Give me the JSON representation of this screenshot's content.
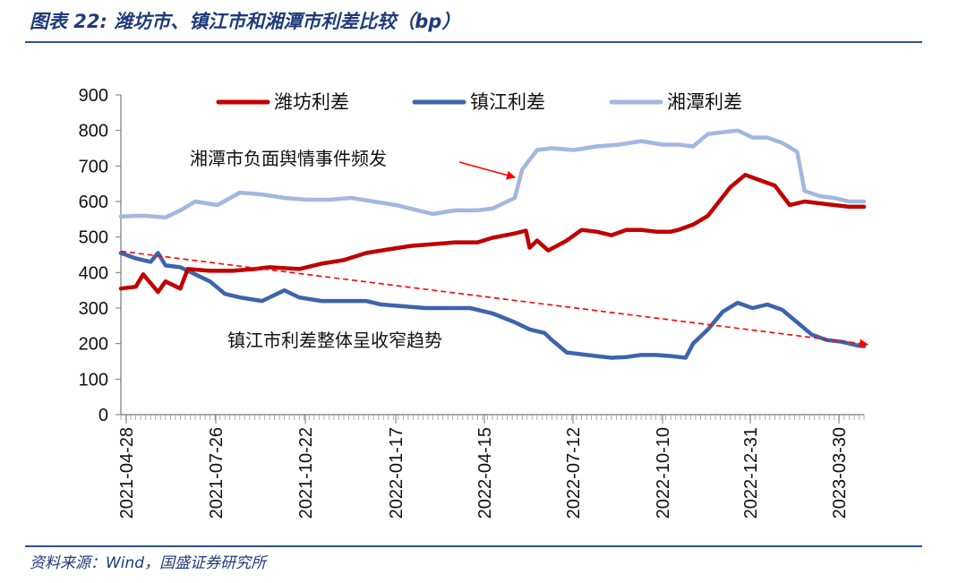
{
  "header": {
    "title": "图表 22:  潍坊市、镇江市和湘潭市利差比较（bp）"
  },
  "footer": {
    "source": "资料来源：Wind，国盛证券研究所"
  },
  "chart_data": {
    "type": "line",
    "y_ticks": [
      0,
      100,
      200,
      300,
      400,
      500,
      600,
      700,
      800,
      900
    ],
    "ylim": [
      0,
      900
    ],
    "x_tick_labels": [
      "2021-04-28",
      "2021-07-26",
      "2021-10-22",
      "2022-01-17",
      "2022-04-15",
      "2022-07-12",
      "2022-10-10",
      "2022-12-31",
      "2023-03-30"
    ],
    "legend": {
      "placement": "top"
    },
    "grid": false,
    "series": [
      {
        "name": "潍坊利差",
        "color": "#c00000",
        "points": [
          [
            0,
            355
          ],
          [
            0.02,
            360
          ],
          [
            0.03,
            395
          ],
          [
            0.05,
            345
          ],
          [
            0.06,
            375
          ],
          [
            0.08,
            355
          ],
          [
            0.09,
            410
          ],
          [
            0.12,
            405
          ],
          [
            0.15,
            405
          ],
          [
            0.18,
            410
          ],
          [
            0.2,
            415
          ],
          [
            0.24,
            410
          ],
          [
            0.27,
            425
          ],
          [
            0.3,
            435
          ],
          [
            0.33,
            455
          ],
          [
            0.36,
            465
          ],
          [
            0.39,
            475
          ],
          [
            0.42,
            480
          ],
          [
            0.45,
            485
          ],
          [
            0.48,
            485
          ],
          [
            0.5,
            498
          ],
          [
            0.53,
            510
          ],
          [
            0.545,
            518
          ],
          [
            0.55,
            470
          ],
          [
            0.56,
            490
          ],
          [
            0.575,
            462
          ],
          [
            0.6,
            490
          ],
          [
            0.62,
            520
          ],
          [
            0.64,
            515
          ],
          [
            0.66,
            505
          ],
          [
            0.68,
            520
          ],
          [
            0.7,
            520
          ],
          [
            0.72,
            515
          ],
          [
            0.74,
            515
          ],
          [
            0.75,
            520
          ],
          [
            0.77,
            535
          ],
          [
            0.79,
            560
          ],
          [
            0.82,
            640
          ],
          [
            0.84,
            675
          ],
          [
            0.86,
            660
          ],
          [
            0.88,
            645
          ],
          [
            0.9,
            590
          ],
          [
            0.92,
            600
          ],
          [
            0.94,
            595
          ],
          [
            0.96,
            590
          ],
          [
            0.98,
            585
          ],
          [
            1,
            585
          ]
        ]
      },
      {
        "name": "镇江利差",
        "color": "#3d64ad",
        "points": [
          [
            0,
            455
          ],
          [
            0.02,
            440
          ],
          [
            0.04,
            430
          ],
          [
            0.05,
            455
          ],
          [
            0.06,
            420
          ],
          [
            0.08,
            415
          ],
          [
            0.1,
            395
          ],
          [
            0.12,
            375
          ],
          [
            0.14,
            340
          ],
          [
            0.16,
            330
          ],
          [
            0.19,
            320
          ],
          [
            0.22,
            350
          ],
          [
            0.24,
            330
          ],
          [
            0.27,
            320
          ],
          [
            0.3,
            320
          ],
          [
            0.33,
            320
          ],
          [
            0.35,
            310
          ],
          [
            0.38,
            305
          ],
          [
            0.41,
            300
          ],
          [
            0.44,
            300
          ],
          [
            0.47,
            300
          ],
          [
            0.5,
            285
          ],
          [
            0.53,
            260
          ],
          [
            0.55,
            240
          ],
          [
            0.57,
            230
          ],
          [
            0.58,
            210
          ],
          [
            0.6,
            175
          ],
          [
            0.62,
            170
          ],
          [
            0.64,
            165
          ],
          [
            0.66,
            160
          ],
          [
            0.68,
            162
          ],
          [
            0.7,
            168
          ],
          [
            0.72,
            168
          ],
          [
            0.74,
            165
          ],
          [
            0.76,
            160
          ],
          [
            0.77,
            200
          ],
          [
            0.79,
            240
          ],
          [
            0.81,
            290
          ],
          [
            0.83,
            315
          ],
          [
            0.85,
            300
          ],
          [
            0.87,
            310
          ],
          [
            0.89,
            295
          ],
          [
            0.91,
            260
          ],
          [
            0.93,
            225
          ],
          [
            0.95,
            210
          ],
          [
            0.97,
            205
          ],
          [
            0.99,
            195
          ],
          [
            1,
            192
          ]
        ]
      },
      {
        "name": "湘潭利差",
        "color": "#a3b7e0",
        "points": [
          [
            0,
            558
          ],
          [
            0.03,
            560
          ],
          [
            0.06,
            555
          ],
          [
            0.08,
            575
          ],
          [
            0.1,
            600
          ],
          [
            0.13,
            590
          ],
          [
            0.16,
            625
          ],
          [
            0.19,
            620
          ],
          [
            0.22,
            610
          ],
          [
            0.25,
            605
          ],
          [
            0.28,
            605
          ],
          [
            0.31,
            610
          ],
          [
            0.34,
            600
          ],
          [
            0.37,
            590
          ],
          [
            0.4,
            575
          ],
          [
            0.42,
            565
          ],
          [
            0.45,
            575
          ],
          [
            0.48,
            575
          ],
          [
            0.5,
            580
          ],
          [
            0.53,
            610
          ],
          [
            0.54,
            690
          ],
          [
            0.56,
            745
          ],
          [
            0.58,
            750
          ],
          [
            0.61,
            745
          ],
          [
            0.64,
            755
          ],
          [
            0.67,
            760
          ],
          [
            0.7,
            770
          ],
          [
            0.73,
            760
          ],
          [
            0.75,
            760
          ],
          [
            0.77,
            755
          ],
          [
            0.79,
            790
          ],
          [
            0.81,
            795
          ],
          [
            0.83,
            800
          ],
          [
            0.85,
            780
          ],
          [
            0.87,
            780
          ],
          [
            0.89,
            765
          ],
          [
            0.91,
            740
          ],
          [
            0.92,
            630
          ],
          [
            0.94,
            615
          ],
          [
            0.96,
            610
          ],
          [
            0.98,
            600
          ],
          [
            1,
            600
          ]
        ]
      }
    ],
    "annotations": [
      {
        "text": "湘潭市负面舆情事件频发"
      },
      {
        "text": "镇江市利差整体呈收窄趋势"
      }
    ],
    "trend_arrow": {
      "from": [
        0,
        460
      ],
      "to": [
        1,
        190
      ],
      "color": "#ff0000"
    }
  }
}
